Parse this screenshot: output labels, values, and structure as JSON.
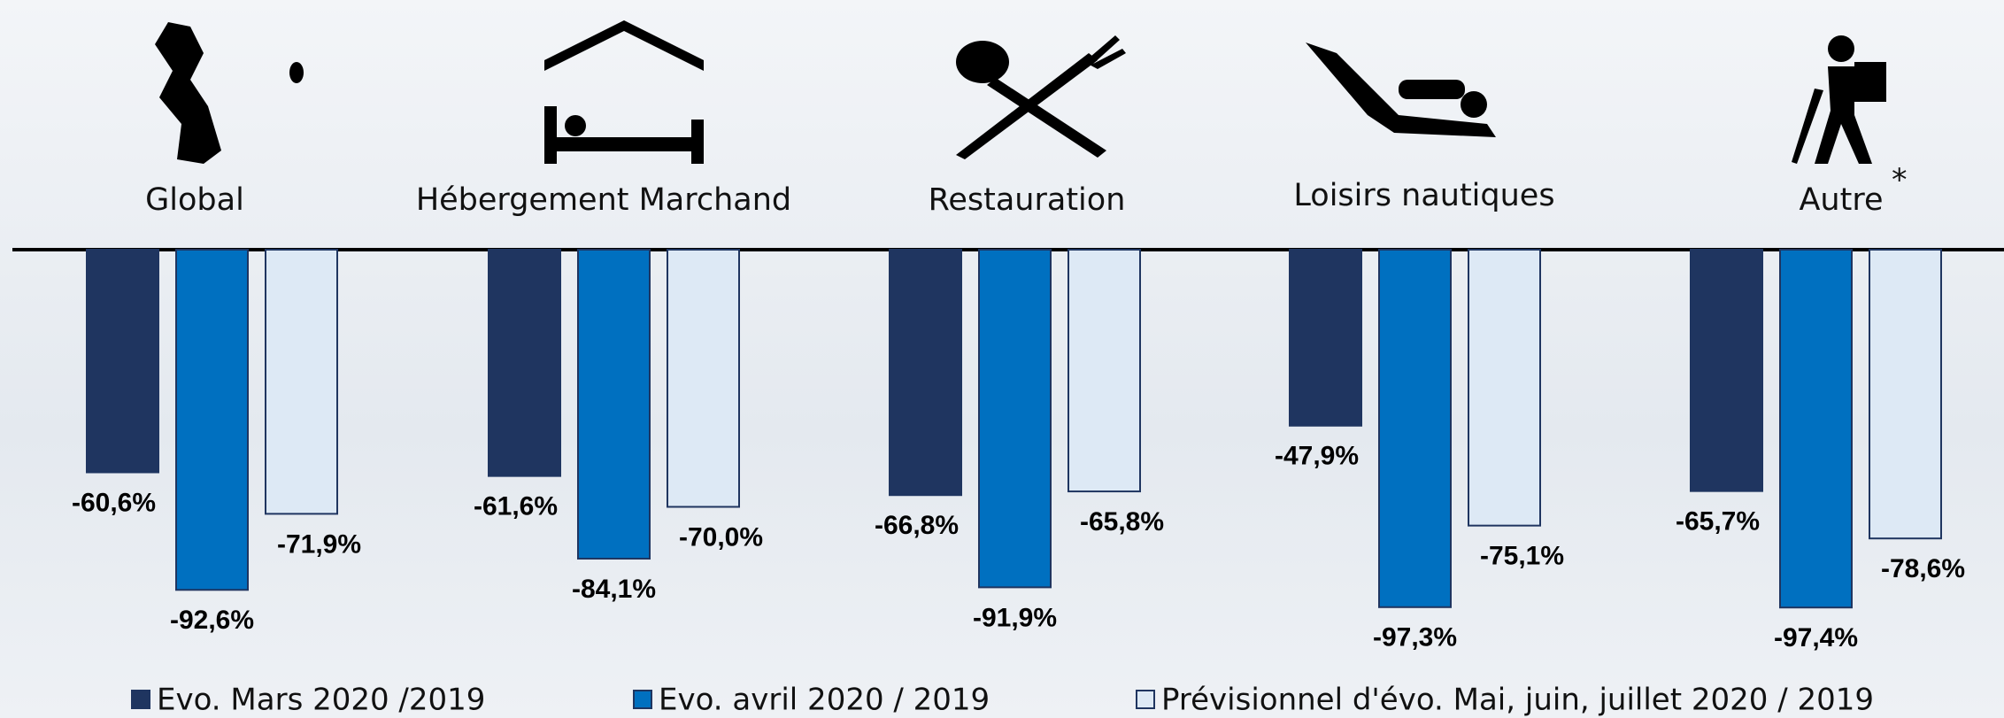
{
  "chart_data": {
    "type": "bar",
    "categories": [
      "Global",
      "Hébergement Marchand",
      "Restauration",
      "Loisirs nautiques",
      "Autre"
    ],
    "annotations": [
      "*"
    ],
    "series": [
      {
        "name": "Evo. Mars 2020 /2019",
        "color": "#1f3560",
        "values": [
          -60.6,
          -61.6,
          -66.8,
          -47.9,
          -65.7
        ],
        "value_labels": [
          "-60,6%",
          "-61,6%",
          "-66,8%",
          "-47,9%",
          "-65,7%"
        ]
      },
      {
        "name": "Evo. avril 2020 / 2019",
        "color": "#0070c0",
        "values": [
          -92.6,
          -84.1,
          -91.9,
          -97.3,
          -97.4
        ],
        "value_labels": [
          "-92,6%",
          "-84,1%",
          "-91,9%",
          "-97,3%",
          "-97,4%"
        ]
      },
      {
        "name": "Prévisionnel d'évo. Mai, juin, juillet 2020 / 2019",
        "color": "#dde9f5",
        "values": [
          -71.9,
          -70.0,
          -65.8,
          -75.1,
          -78.6
        ],
        "value_labels": [
          "-71,9%",
          "-70,0%",
          "-65,8%",
          "-75,1%",
          "-78,6%"
        ]
      }
    ]
  }
}
